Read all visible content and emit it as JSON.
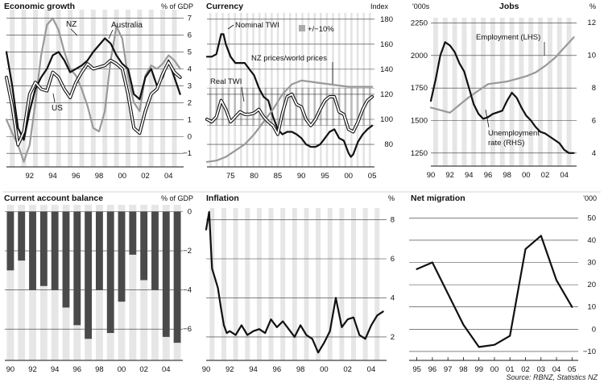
{
  "source": "Source: RBNZ, Statistics NZ",
  "chart_data": [
    {
      "id": "economic-growth",
      "type": "line",
      "title": "Economic growth",
      "unit_label": "% of GDP",
      "x_ticks": [
        "92",
        "94",
        "96",
        "98",
        "00",
        "02",
        "04"
      ],
      "y_ticks": [
        "−1",
        "0",
        "1",
        "2",
        "3",
        "4",
        "5",
        "6",
        "7"
      ],
      "ylim": [
        -1.8,
        7.5
      ],
      "xlim": [
        1990,
        2005.3
      ],
      "series": [
        {
          "name": "NZ",
          "color": "#999999",
          "x": [
            1990,
            1990.5,
            1991,
            1991.5,
            1992,
            1992.5,
            1993,
            1993.5,
            1994,
            1994.5,
            1995,
            1995.5,
            1996,
            1996.5,
            1997,
            1997.5,
            1998,
            1998.5,
            1999,
            1999.5,
            2000,
            2000.5,
            2001,
            2001.5,
            2002,
            2002.5,
            2003,
            2003.5,
            2004,
            2004.5,
            2005
          ],
          "y": [
            1.0,
            0.2,
            -0.5,
            -1.5,
            -0.5,
            2.0,
            4.8,
            6.6,
            7.0,
            6.3,
            5.0,
            4.0,
            3.6,
            2.8,
            1.8,
            0.5,
            0.3,
            1.5,
            4.5,
            6.5,
            5.8,
            3.5,
            2.0,
            1.5,
            3.6,
            4.2,
            4.0,
            4.3,
            4.8,
            4.5,
            4.0
          ]
        },
        {
          "name": "Australia",
          "color": "#111111",
          "x": [
            1990,
            1990.5,
            1991,
            1991.5,
            1992,
            1992.5,
            1993,
            1993.5,
            1994,
            1994.5,
            1995,
            1995.5,
            1996,
            1996.5,
            1997,
            1997.5,
            1998,
            1998.5,
            1999,
            1999.5,
            2000,
            2000.5,
            2001,
            2001.5,
            2002,
            2002.5,
            2003,
            2003.5,
            2004,
            2004.5,
            2005
          ],
          "y": [
            5.0,
            3.0,
            0.5,
            -0.2,
            1.5,
            2.8,
            3.5,
            4.0,
            4.8,
            5.0,
            4.5,
            3.8,
            4.0,
            4.2,
            4.5,
            5.0,
            5.4,
            5.8,
            5.5,
            4.8,
            4.3,
            4.0,
            2.5,
            2.2,
            3.5,
            4.0,
            3.0,
            3.5,
            4.5,
            3.5,
            2.5
          ]
        },
        {
          "name": "US",
          "color": "#111111",
          "outlined": true,
          "x": [
            1990,
            1990.5,
            1991,
            1991.5,
            1992,
            1992.5,
            1993,
            1993.5,
            1994,
            1994.5,
            1995,
            1995.5,
            1996,
            1996.5,
            1997,
            1997.5,
            1998,
            1998.5,
            1999,
            1999.5,
            2000,
            2000.5,
            2001,
            2001.5,
            2002,
            2002.5,
            2003,
            2003.5,
            2004,
            2004.5,
            2005
          ],
          "y": [
            3.5,
            1.8,
            -0.5,
            0.3,
            2.5,
            3.2,
            2.8,
            2.7,
            3.8,
            3.5,
            2.8,
            2.3,
            3.2,
            3.8,
            4.3,
            4.0,
            4.1,
            4.2,
            4.5,
            4.3,
            4.0,
            2.5,
            0.5,
            0.2,
            1.5,
            2.5,
            2.8,
            3.7,
            4.4,
            3.8,
            3.5
          ]
        }
      ]
    },
    {
      "id": "currency",
      "type": "line",
      "title": "Currency",
      "unit_label": "Index",
      "band_label": "+/−10%",
      "x_ticks": [
        "75",
        "80",
        "85",
        "90",
        "95",
        "00",
        "05"
      ],
      "y_ticks": [
        "80",
        "100",
        "120",
        "140",
        "160",
        "180"
      ],
      "ylim": [
        62,
        185
      ],
      "xlim": [
        1970,
        2005.5
      ],
      "band": {
        "from": 95,
        "to": 125
      },
      "series": [
        {
          "name": "Nominal TWI",
          "color": "#111111",
          "x": [
            1970,
            1971,
            1972,
            1973,
            1973.5,
            1974,
            1975,
            1976,
            1977,
            1978,
            1979,
            1980,
            1981,
            1982,
            1983,
            1984,
            1985,
            1986,
            1987,
            1988,
            1989,
            1990,
            1991,
            1992,
            1993,
            1994,
            1995,
            1996,
            1997,
            1998,
            1999,
            2000,
            2000.5,
            2001,
            2002,
            2003,
            2004,
            2005
          ],
          "y": [
            150,
            150,
            152,
            168,
            168,
            160,
            150,
            145,
            145,
            145,
            140,
            135,
            125,
            118,
            115,
            102,
            92,
            88,
            90,
            90,
            88,
            85,
            80,
            78,
            78,
            80,
            85,
            90,
            92,
            85,
            83,
            73,
            70,
            72,
            82,
            88,
            92,
            95
          ]
        },
        {
          "name": "NZ prices/world prices",
          "color": "#999999",
          "x": [
            1970,
            1972,
            1974,
            1976,
            1978,
            1980,
            1982,
            1984,
            1986,
            1988,
            1990,
            1992,
            1994,
            1996,
            1998,
            2000,
            2002,
            2004,
            2005
          ],
          "y": [
            66,
            67,
            70,
            75,
            80,
            88,
            98,
            108,
            120,
            128,
            131,
            130,
            129,
            128,
            127,
            126,
            126,
            126,
            126
          ]
        },
        {
          "name": "Real TWI",
          "color": "#111111",
          "outlined": true,
          "x": [
            1970,
            1971,
            1972,
            1973,
            1974,
            1975,
            1976,
            1977,
            1978,
            1979,
            1980,
            1981,
            1982,
            1983,
            1984,
            1985,
            1986,
            1987,
            1988,
            1989,
            1990,
            1991,
            1992,
            1993,
            1994,
            1995,
            1996,
            1997,
            1998,
            1999,
            2000,
            2001,
            2002,
            2003,
            2004,
            2005
          ],
          "y": [
            100,
            98,
            102,
            115,
            108,
            98,
            102,
            106,
            104,
            104,
            105,
            108,
            102,
            98,
            95,
            88,
            105,
            118,
            120,
            112,
            110,
            100,
            95,
            100,
            108,
            115,
            118,
            118,
            106,
            104,
            92,
            90,
            98,
            108,
            115,
            118
          ]
        }
      ]
    },
    {
      "id": "jobs",
      "type": "line",
      "title": "Jobs",
      "unit_label_left": "'000s",
      "unit_label_right": "%",
      "x_ticks": [
        "90",
        "92",
        "94",
        "96",
        "98",
        "00",
        "02",
        "04"
      ],
      "y_ticks_left": [
        "1250",
        "1500",
        "1750",
        "2000",
        "2250"
      ],
      "y_ticks_right": [
        "4",
        "6",
        "8",
        "10",
        "12"
      ],
      "ylim_left": [
        1150,
        2290
      ],
      "ylim_right": [
        3.2,
        12.3
      ],
      "xlim": [
        1990,
        2005.3
      ],
      "series": [
        {
          "name": "Employment (LHS)",
          "color": "#999999",
          "axis": "left",
          "x": [
            1990,
            1991,
            1992,
            1993,
            1994,
            1995,
            1996,
            1997,
            1998,
            1999,
            2000,
            2001,
            2002,
            2003,
            2004,
            2005
          ],
          "y": [
            1600,
            1580,
            1560,
            1620,
            1680,
            1730,
            1780,
            1790,
            1800,
            1820,
            1840,
            1870,
            1920,
            1980,
            2060,
            2140
          ]
        },
        {
          "name": "Unemployment rate (RHS)",
          "color": "#111111",
          "axis": "right",
          "x": [
            1990,
            1990.5,
            1991,
            1991.5,
            1992,
            1992.5,
            1993,
            1993.5,
            1994,
            1994.5,
            1995,
            1995.5,
            1996,
            1996.5,
            1997,
            1997.5,
            1998,
            1998.5,
            1999,
            1999.5,
            2000,
            2000.5,
            2001,
            2001.5,
            2002,
            2002.5,
            2003,
            2003.5,
            2004,
            2004.5,
            2005
          ],
          "y": [
            7.2,
            8.5,
            10.0,
            10.8,
            10.6,
            10.2,
            9.5,
            9.0,
            8.0,
            7.0,
            6.4,
            6.1,
            6.2,
            6.4,
            6.5,
            6.6,
            7.2,
            7.7,
            7.4,
            6.8,
            6.3,
            6.0,
            5.6,
            5.3,
            5.2,
            5.0,
            4.8,
            4.6,
            4.2,
            4.0,
            4.0
          ]
        }
      ]
    },
    {
      "id": "current-account",
      "type": "bar",
      "title": "Current account balance",
      "unit_label": "% of GDP",
      "x_ticks": [
        "90",
        "92",
        "94",
        "96",
        "98",
        "00",
        "02",
        "04"
      ],
      "y_ticks": [
        "0",
        "−2",
        "−4",
        "−6"
      ],
      "ylim": [
        -7.6,
        0.35
      ],
      "categories": [
        "90",
        "91",
        "92",
        "93",
        "94",
        "95",
        "96",
        "97",
        "98",
        "99",
        "00",
        "01",
        "02",
        "03",
        "04",
        "05"
      ],
      "values": [
        -3.0,
        -2.5,
        -4.0,
        -3.8,
        -4.0,
        -4.9,
        -5.8,
        -6.5,
        -4.0,
        -6.2,
        -4.6,
        -2.2,
        -3.5,
        -4.0,
        -6.4,
        -6.7
      ]
    },
    {
      "id": "inflation",
      "type": "line",
      "title": "Inflation",
      "unit_label": "%",
      "x_ticks": [
        "90",
        "92",
        "94",
        "96",
        "98",
        "00",
        "02",
        "04"
      ],
      "y_ticks": [
        "2",
        "4",
        "6",
        "8"
      ],
      "ylim": [
        0.8,
        8.6
      ],
      "xlim": [
        1990,
        2005.3
      ],
      "series": [
        {
          "name": "",
          "color": "#111111",
          "x": [
            1990,
            1990.25,
            1990.5,
            1990.75,
            1991,
            1991.25,
            1991.5,
            1991.75,
            1992,
            1992.5,
            1993,
            1993.5,
            1994,
            1994.5,
            1995,
            1995.5,
            1996,
            1996.5,
            1997,
            1997.5,
            1998,
            1998.5,
            1999,
            1999.5,
            2000,
            2000.5,
            2001,
            2001.5,
            2002,
            2002.5,
            2003,
            2003.5,
            2004,
            2004.5,
            2005
          ],
          "y": [
            7.5,
            8.4,
            5.5,
            5.0,
            4.5,
            3.5,
            2.6,
            2.2,
            2.3,
            2.1,
            2.6,
            2.1,
            2.3,
            2.4,
            2.2,
            2.9,
            2.5,
            2.8,
            2.4,
            2.0,
            2.6,
            2.1,
            1.9,
            1.2,
            1.7,
            2.3,
            4.0,
            2.5,
            2.9,
            3.0,
            2.1,
            1.9,
            2.6,
            3.1,
            3.3
          ]
        }
      ]
    },
    {
      "id": "net-migration",
      "type": "line",
      "title": "Net migration",
      "unit_label": "'000",
      "x_ticks": [
        "95",
        "96",
        "97",
        "98",
        "99",
        "00",
        "01",
        "02",
        "03",
        "04",
        "05"
      ],
      "y_ticks": [
        "−10",
        "0",
        "10",
        "20",
        "30",
        "40",
        "50"
      ],
      "ylim": [
        -14,
        53
      ],
      "xlim": [
        1994.5,
        2005.4
      ],
      "series": [
        {
          "name": "",
          "color": "#111111",
          "x": [
            1995,
            1996,
            1997,
            1998,
            1999,
            2000,
            2001,
            2002,
            2003,
            2004,
            2005
          ],
          "y": [
            27,
            30,
            16,
            2,
            -8,
            -7,
            -3,
            36,
            42,
            22,
            10
          ]
        }
      ]
    }
  ]
}
